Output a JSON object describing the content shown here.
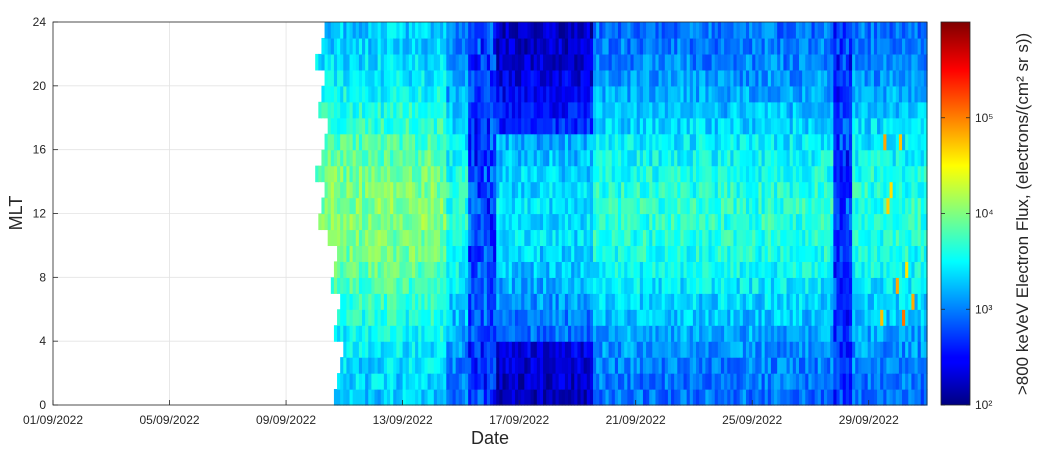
{
  "chart_data": {
    "type": "heatmap",
    "title": "",
    "xlabel": "Date",
    "ylabel": "MLT",
    "x_ticks": [
      "01/09/2022",
      "05/09/2022",
      "09/09/2022",
      "13/09/2022",
      "17/09/2022",
      "21/09/2022",
      "25/09/2022",
      "29/09/2022"
    ],
    "y_ticks": [
      "0",
      "4",
      "8",
      "12",
      "16",
      "20",
      "24"
    ],
    "xlim": [
      "2022-09-01",
      "2022-10-01"
    ],
    "ylim": [
      0,
      24
    ],
    "grid": true,
    "colorbar": {
      "label": ">800 keVeV Electron Flux, (electrons/(cm² sr s))",
      "scale": "log",
      "range": [
        100,
        1000000
      ],
      "tick_values": [
        100,
        1000,
        10000,
        100000
      ],
      "tick_labels": [
        "10²",
        "10³",
        "10⁴",
        "10⁵"
      ],
      "colormap": "jet"
    },
    "data_start": "2022-09-10",
    "features": [
      {
        "date": "2022-09-15",
        "description": "flux dropout (dark blue band)"
      },
      {
        "date": "2022-09-27",
        "description": "flux dropout (dark blue band)"
      }
    ]
  }
}
